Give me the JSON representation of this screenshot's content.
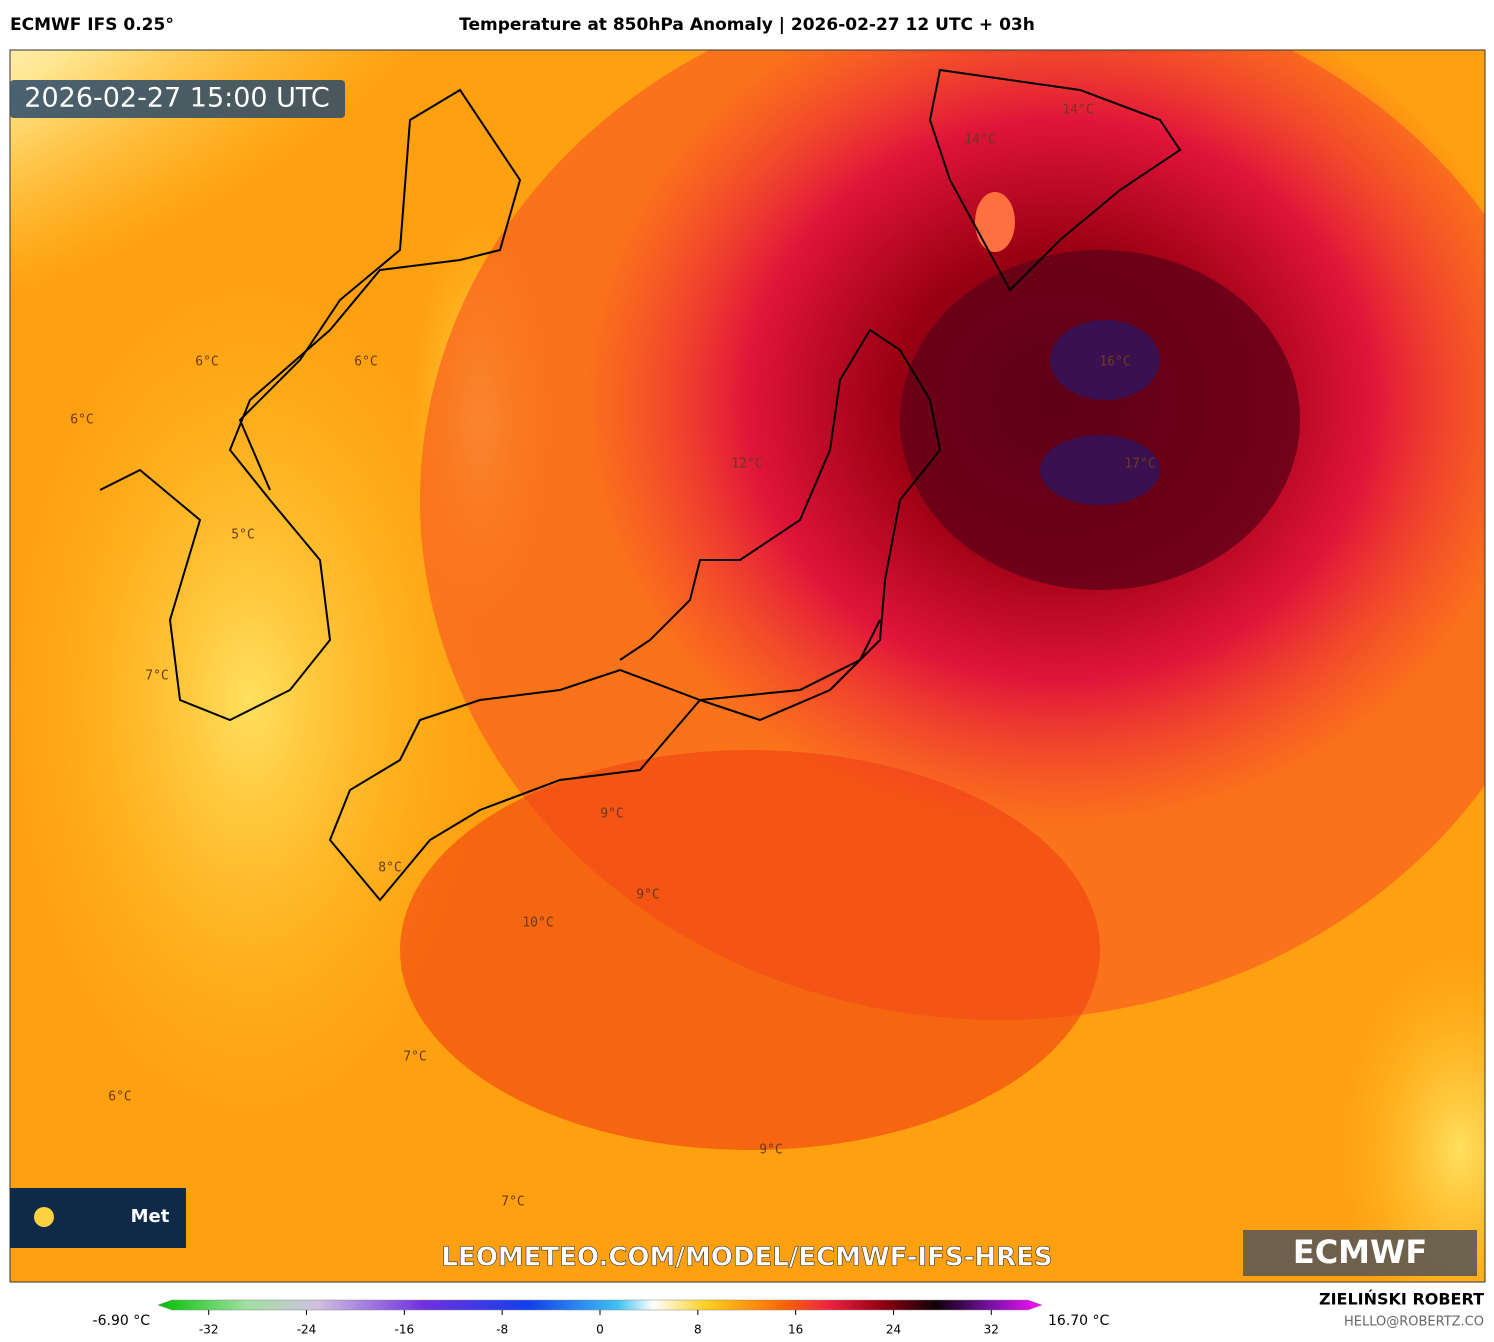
{
  "header": {
    "model": "ECMWF IFS 0.25°",
    "title": "Temperature at 850hPa Anomaly | 2026-02-27 12 UTC + 03h"
  },
  "map": {
    "timestamp": "2026-02-27 15:00 UTC",
    "contour_labels": [
      "14°C",
      "14°C",
      "6°C",
      "6°C",
      "6°C",
      "12°C",
      "16°C",
      "17°C",
      "5°C",
      "7°C",
      "9°C",
      "9°C",
      "10°C",
      "8°C",
      "7°C",
      "6°C",
      "9°C",
      "7°C"
    ],
    "watermark": "LEOMETEO.COM/MODEL/ECMWF-IFS-HRES",
    "logo": "ECMWF",
    "badge": "Met"
  },
  "colorbar": {
    "min_label": "-6.90 °C",
    "max_label": "16.70 °C",
    "range": [
      -35,
      35
    ],
    "ticks": [
      -32,
      -24,
      -16,
      -8,
      0,
      8,
      16,
      24,
      32
    ]
  },
  "credits": {
    "name": "ZIELIŃSKI ROBERT",
    "email": "HELLO@ROBERTZ.CO"
  }
}
